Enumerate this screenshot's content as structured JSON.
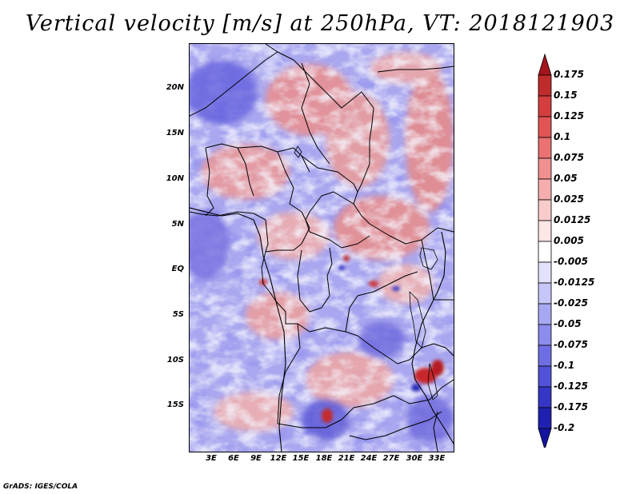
{
  "title": "Vertical velocity [m/s] at 250hPa, VT: 2018121903",
  "map": {
    "variable": "Vertical velocity",
    "units": "m/s",
    "level": "250hPa",
    "lat_labels": [
      "20N",
      "15N",
      "10N",
      "5N",
      "EQ",
      "5S",
      "10S",
      "15S"
    ],
    "lon_labels": [
      "3E",
      "6E",
      "9E",
      "12E",
      "15E",
      "18E",
      "21E",
      "24E",
      "27E",
      "30E",
      "33E"
    ],
    "positive_color": "#e4413a",
    "negative_color": "#5a55e4"
  },
  "colorbar": {
    "labels": [
      "0.175",
      "0.15",
      "0.125",
      "0.1",
      "0.075",
      "0.05",
      "0.025",
      "0.0125",
      "0.005",
      "-0.005",
      "-0.0125",
      "-0.025",
      "-0.05",
      "-0.075",
      "-0.1",
      "-0.125",
      "-0.175",
      "-0.2"
    ],
    "colors": [
      "#a5141c",
      "#c02c2c",
      "#d43e3e",
      "#e25454",
      "#ea7272",
      "#f09090",
      "#f5adad",
      "#f9cccc",
      "#fde6e6",
      "#ffffff",
      "#e2e2fc",
      "#c6c6f8",
      "#a8a8f2",
      "#8c8cec",
      "#6e6ee4",
      "#5252d8",
      "#3636c6",
      "#2020b0",
      "#1414a0"
    ]
  },
  "footer": "GrADS: IGES/COLA"
}
